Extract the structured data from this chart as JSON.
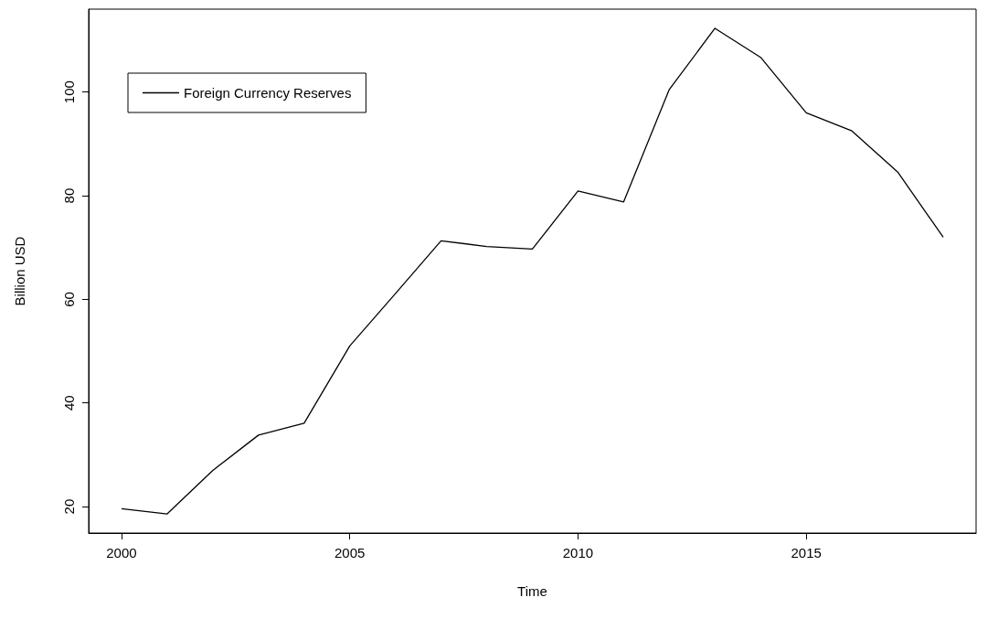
{
  "chart_data": {
    "type": "line",
    "xlabel": "Time",
    "ylabel": "Billion USD",
    "x": [
      2000,
      2001,
      2002,
      2003,
      2004,
      2005,
      2006,
      2007,
      2008,
      2009,
      2010,
      2011,
      2012,
      2013,
      2014,
      2015,
      2016,
      2017,
      2018
    ],
    "series": [
      {
        "name": "Foreign Currency Reserves",
        "color": "#000000",
        "values": [
          19.6,
          18.6,
          27.0,
          33.8,
          36.1,
          51.0,
          61.1,
          71.3,
          70.2,
          69.7,
          80.9,
          78.8,
          100.5,
          112.3,
          106.7,
          96.0,
          92.5,
          84.6,
          72.0
        ]
      }
    ],
    "xlim": [
      1999.28,
      2018.72
    ],
    "xticks": [
      2000,
      2005,
      2010,
      2015
    ],
    "ylim": [
      14.9,
      116
    ],
    "yticks": [
      20,
      40,
      60,
      80,
      100
    ],
    "legend": "top left",
    "grid": false,
    "marker": "none",
    "line_style": "solid"
  }
}
